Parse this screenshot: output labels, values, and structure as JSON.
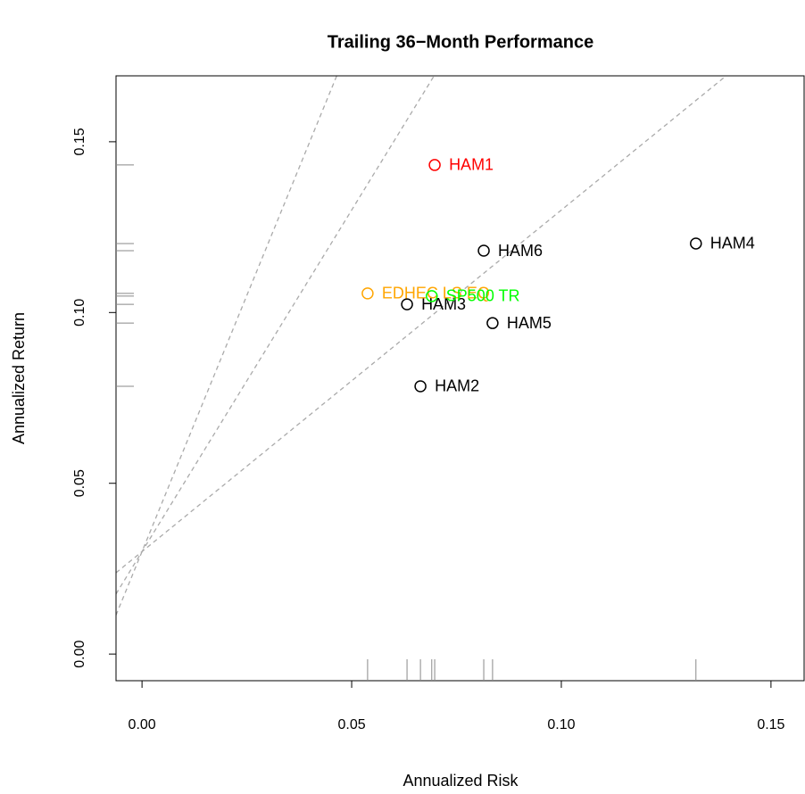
{
  "chart_data": {
    "type": "scatter",
    "title": "Trailing 36−Month Performance",
    "x_label": "Annualized Risk",
    "y_label": "Annualized Return",
    "xlim": [
      -0.0062,
      0.1579
    ],
    "ylim": [
      -0.0078,
      0.1693
    ],
    "xticks": [
      {
        "value": 0,
        "label": "0.00"
      },
      {
        "value": 0.05,
        "label": "0.05"
      },
      {
        "value": 0.1,
        "label": "0.10"
      },
      {
        "value": 0.15,
        "label": "0.15"
      }
    ],
    "yticks": [
      {
        "value": 0,
        "label": "0.00"
      },
      {
        "value": 0.05,
        "label": "0.05"
      },
      {
        "value": 0.1,
        "label": "0.10"
      },
      {
        "value": 0.15,
        "label": "0.15"
      }
    ],
    "sharpe_lines": {
      "intercept": 0.03,
      "slopes": [
        1,
        2,
        3
      ],
      "color": "#aaaaaa"
    },
    "rug_color": "#888888",
    "series": [
      {
        "name": "HAM1",
        "color": "#ff0000",
        "x": 0.0698,
        "y": 0.1432
      },
      {
        "name": "HAM2",
        "color": "#000000",
        "x": 0.0664,
        "y": 0.0784
      },
      {
        "name": "HAM3",
        "color": "#000000",
        "x": 0.0632,
        "y": 0.1024
      },
      {
        "name": "HAM4",
        "color": "#000000",
        "x": 0.1321,
        "y": 0.1202
      },
      {
        "name": "HAM5",
        "color": "#000000",
        "x": 0.0836,
        "y": 0.0969
      },
      {
        "name": "HAM6",
        "color": "#000000",
        "x": 0.0815,
        "y": 0.1181
      },
      {
        "name": "EDHEC LS EQ",
        "color": "#ffa500",
        "x": 0.0538,
        "y": 0.1056
      },
      {
        "name": "SP500 TR",
        "color": "#00ff00",
        "x": 0.0691,
        "y": 0.1048
      }
    ]
  }
}
